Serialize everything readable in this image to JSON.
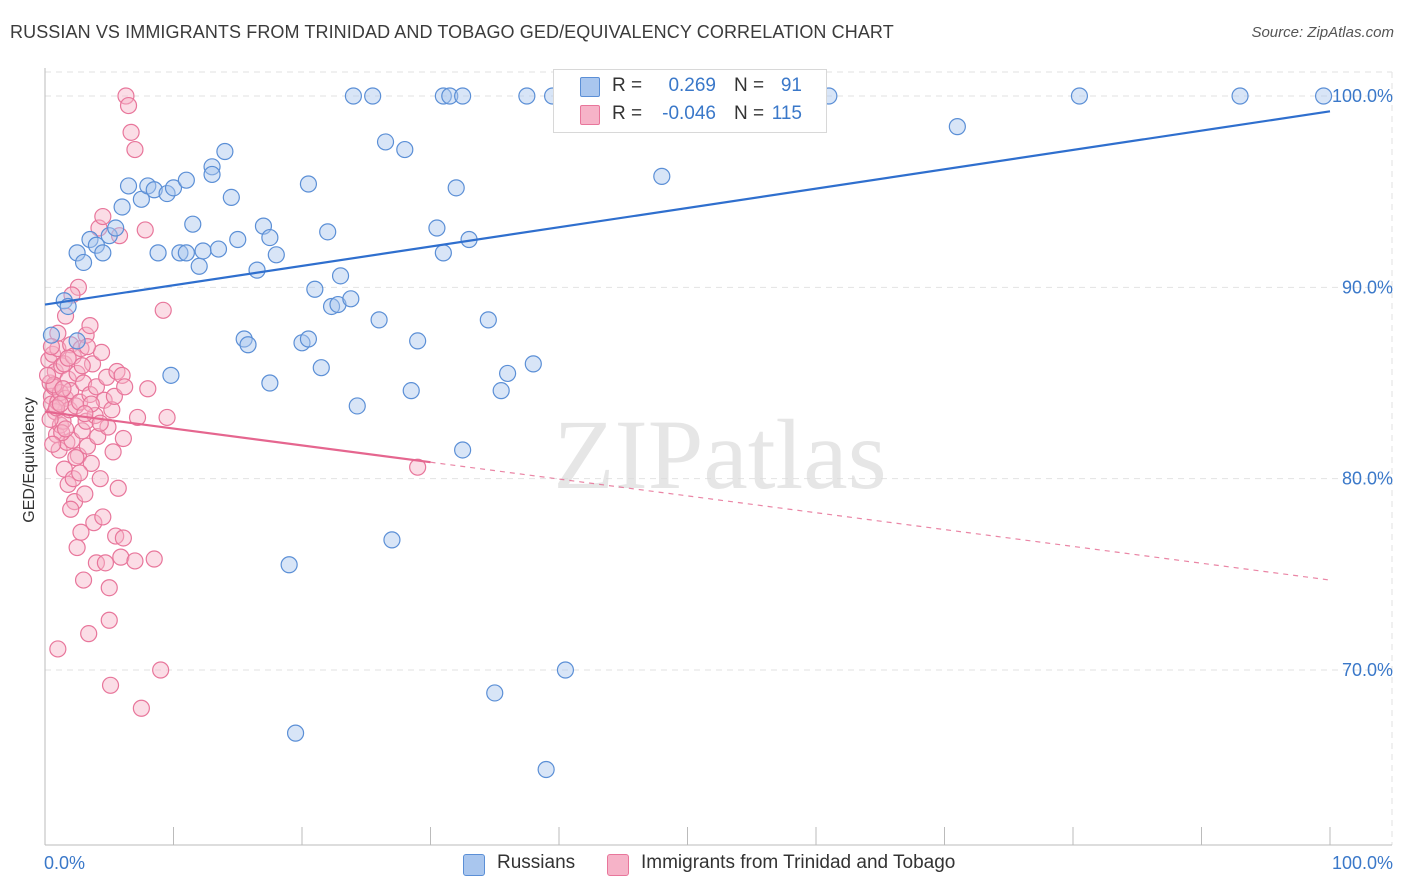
{
  "title": "RUSSIAN VS IMMIGRANTS FROM TRINIDAD AND TOBAGO GED/EQUIVALENCY CORRELATION CHART",
  "source": "Source: ZipAtlas.com",
  "watermark": "ZIPatlas",
  "colors": {
    "blue_fill": "#a9c6ee",
    "blue_stroke": "#5b8fd6",
    "blue_line": "#2f6fce",
    "pink_fill": "#f6b3c8",
    "pink_stroke": "#e8769b",
    "pink_line": "#e5668f",
    "axis_label": "#3a78c9",
    "grid": "#e2e2e2"
  },
  "legend": {
    "rows": [
      {
        "r_label": "R =",
        "r_value": "0.269",
        "n_label": "N =",
        "n_value": "91",
        "color": "#a9c6ee"
      },
      {
        "r_label": "R =",
        "r_value": "-0.046",
        "n_label": "N =",
        "n_value": "115",
        "color": "#f6b3c8"
      }
    ]
  },
  "bottom_legend": [
    "Russians",
    "Immigrants from Trinidad and Tobago"
  ],
  "chart_data": {
    "type": "scatter",
    "title": "RUSSIAN VS IMMIGRANTS FROM TRINIDAD AND TOBAGO GED/EQUIVALENCY CORRELATION CHART",
    "xlabel": "",
    "ylabel": "GED/Equivalency",
    "xlim": [
      0,
      100
    ],
    "ylim": [
      60.5,
      101.5
    ],
    "x_tick_labels": [
      "0.0%",
      "100.0%"
    ],
    "y_ticks": [
      70,
      80,
      90,
      100
    ],
    "y_tick_labels": [
      "70.0%",
      "80.0%",
      "90.0%",
      "100.0%"
    ],
    "grid": true,
    "series": [
      {
        "name": "Russians",
        "trend": {
          "x": [
            0,
            100
          ],
          "y": [
            89.1,
            99.2
          ],
          "dashed_from": null
        },
        "points": [
          [
            0.5,
            87.5
          ],
          [
            1.5,
            89.3
          ],
          [
            1.8,
            89.0
          ],
          [
            2.5,
            87.2
          ],
          [
            2.5,
            91.8
          ],
          [
            3.0,
            91.3
          ],
          [
            3.5,
            92.5
          ],
          [
            4.0,
            92.2
          ],
          [
            4.5,
            91.8
          ],
          [
            5.0,
            92.7
          ],
          [
            5.5,
            93.1
          ],
          [
            6.0,
            94.2
          ],
          [
            6.5,
            95.3
          ],
          [
            7.5,
            94.6
          ],
          [
            8.0,
            95.3
          ],
          [
            8.5,
            95.1
          ],
          [
            8.8,
            91.8
          ],
          [
            9.5,
            94.9
          ],
          [
            10.5,
            91.8
          ],
          [
            10.0,
            95.2
          ],
          [
            9.8,
            85.4
          ],
          [
            11.0,
            95.6
          ],
          [
            11.0,
            91.8
          ],
          [
            11.5,
            93.3
          ],
          [
            12.0,
            91.1
          ],
          [
            12.3,
            91.9
          ],
          [
            13.0,
            96.3
          ],
          [
            13.0,
            95.9
          ],
          [
            13.5,
            92.0
          ],
          [
            14.0,
            97.1
          ],
          [
            14.5,
            94.7
          ],
          [
            15.0,
            92.5
          ],
          [
            15.5,
            87.3
          ],
          [
            15.8,
            87.0
          ],
          [
            16.5,
            90.9
          ],
          [
            17.0,
            93.2
          ],
          [
            17.5,
            92.6
          ],
          [
            17.5,
            85.0
          ],
          [
            18.0,
            91.7
          ],
          [
            19.0,
            75.5
          ],
          [
            19.5,
            66.7
          ],
          [
            20.0,
            87.1
          ],
          [
            20.5,
            87.3
          ],
          [
            20.5,
            95.4
          ],
          [
            21.0,
            89.9
          ],
          [
            21.5,
            85.8
          ],
          [
            22.0,
            92.9
          ],
          [
            22.3,
            89.0
          ],
          [
            22.8,
            89.1
          ],
          [
            23.0,
            90.6
          ],
          [
            24.0,
            100.0
          ],
          [
            23.8,
            89.4
          ],
          [
            24.3,
            83.8
          ],
          [
            25.5,
            100.0
          ],
          [
            26.0,
            88.3
          ],
          [
            26.5,
            97.6
          ],
          [
            27.0,
            76.8
          ],
          [
            28.0,
            97.2
          ],
          [
            28.5,
            84.6
          ],
          [
            29.0,
            87.2
          ],
          [
            30.5,
            93.1
          ],
          [
            31.0,
            91.8
          ],
          [
            31.0,
            100.0
          ],
          [
            31.5,
            100.0
          ],
          [
            32.0,
            95.2
          ],
          [
            32.5,
            81.5
          ],
          [
            32.5,
            100.0
          ],
          [
            33.0,
            92.5
          ],
          [
            34.5,
            88.3
          ],
          [
            35.5,
            84.6
          ],
          [
            37.5,
            100.0
          ],
          [
            38.0,
            86.0
          ],
          [
            39.0,
            64.8
          ],
          [
            40.5,
            70.0
          ],
          [
            39.5,
            100.0
          ],
          [
            41.0,
            100.0
          ],
          [
            44.5,
            100.0
          ],
          [
            47.0,
            100.0
          ],
          [
            48.0,
            95.8
          ],
          [
            52.0,
            100.0
          ],
          [
            55.5,
            100.0
          ],
          [
            58.0,
            100.0
          ],
          [
            61.0,
            100.0
          ],
          [
            71.0,
            98.4
          ],
          [
            80.5,
            100.0
          ],
          [
            93.0,
            100.0
          ],
          [
            99.5,
            100.0
          ],
          [
            35.0,
            68.8
          ],
          [
            36.0,
            85.5
          ]
        ]
      },
      {
        "name": "Immigrants from Trinidad and Tobago",
        "trend": {
          "x": [
            0,
            100
          ],
          "y": [
            83.5,
            74.7
          ],
          "dashed_from": 30
        },
        "points": [
          [
            0.3,
            86.2
          ],
          [
            0.4,
            85.0
          ],
          [
            0.5,
            84.3
          ],
          [
            0.5,
            83.9
          ],
          [
            0.6,
            86.5
          ],
          [
            0.7,
            84.8
          ],
          [
            0.8,
            83.5
          ],
          [
            0.8,
            85.6
          ],
          [
            0.9,
            82.3
          ],
          [
            1.0,
            84.0
          ],
          [
            1.0,
            86.8
          ],
          [
            1.1,
            81.5
          ],
          [
            1.2,
            82.8
          ],
          [
            1.2,
            84.5
          ],
          [
            1.3,
            85.9
          ],
          [
            1.4,
            83.0
          ],
          [
            1.5,
            80.5
          ],
          [
            1.5,
            86.0
          ],
          [
            1.6,
            84.2
          ],
          [
            1.6,
            88.5
          ],
          [
            1.7,
            81.9
          ],
          [
            1.8,
            79.7
          ],
          [
            1.8,
            85.2
          ],
          [
            1.9,
            83.6
          ],
          [
            2.0,
            87.0
          ],
          [
            2.0,
            84.6
          ],
          [
            2.1,
            82.0
          ],
          [
            2.2,
            80.0
          ],
          [
            2.2,
            86.4
          ],
          [
            2.3,
            78.8
          ],
          [
            2.4,
            83.8
          ],
          [
            2.5,
            85.5
          ],
          [
            2.5,
            76.4
          ],
          [
            2.6,
            81.2
          ],
          [
            2.6,
            90.0
          ],
          [
            2.7,
            84.0
          ],
          [
            2.8,
            77.2
          ],
          [
            2.8,
            86.8
          ],
          [
            2.9,
            82.5
          ],
          [
            3.0,
            74.7
          ],
          [
            3.0,
            85.0
          ],
          [
            3.1,
            79.2
          ],
          [
            3.2,
            83.0
          ],
          [
            3.2,
            87.5
          ],
          [
            3.3,
            81.7
          ],
          [
            3.4,
            71.9
          ],
          [
            3.5,
            84.4
          ],
          [
            3.5,
            88.0
          ],
          [
            3.6,
            80.8
          ],
          [
            3.7,
            86.0
          ],
          [
            3.8,
            77.7
          ],
          [
            3.9,
            83.3
          ],
          [
            4.0,
            75.6
          ],
          [
            4.0,
            84.8
          ],
          [
            4.1,
            82.2
          ],
          [
            4.2,
            93.1
          ],
          [
            4.3,
            80.0
          ],
          [
            4.4,
            86.6
          ],
          [
            4.5,
            78.0
          ],
          [
            4.5,
            93.7
          ],
          [
            4.6,
            84.1
          ],
          [
            4.7,
            75.6
          ],
          [
            4.8,
            85.3
          ],
          [
            4.9,
            82.7
          ],
          [
            5.0,
            74.3
          ],
          [
            5.0,
            72.6
          ],
          [
            5.1,
            69.2
          ],
          [
            5.2,
            83.6
          ],
          [
            5.3,
            81.4
          ],
          [
            5.4,
            84.3
          ],
          [
            5.5,
            77.0
          ],
          [
            5.6,
            85.6
          ],
          [
            5.7,
            79.5
          ],
          [
            5.8,
            92.7
          ],
          [
            5.9,
            75.9
          ],
          [
            6.0,
            85.4
          ],
          [
            6.1,
            82.1
          ],
          [
            6.2,
            84.8
          ],
          [
            6.3,
            100.0
          ],
          [
            6.5,
            99.5
          ],
          [
            6.7,
            98.1
          ],
          [
            7.0,
            97.2
          ],
          [
            7.2,
            83.2
          ],
          [
            7.5,
            68.0
          ],
          [
            7.8,
            93.0
          ],
          [
            8.0,
            84.7
          ],
          [
            8.5,
            75.8
          ],
          [
            9.0,
            70.0
          ],
          [
            9.2,
            88.8
          ],
          [
            9.5,
            83.2
          ],
          [
            1.0,
            71.1
          ],
          [
            1.3,
            82.4
          ],
          [
            2.1,
            89.6
          ],
          [
            2.9,
            85.9
          ],
          [
            3.6,
            83.9
          ],
          [
            4.3,
            82.9
          ],
          [
            0.4,
            83.1
          ],
          [
            0.6,
            81.8
          ],
          [
            0.7,
            84.9
          ],
          [
            1.0,
            87.6
          ],
          [
            1.4,
            84.7
          ],
          [
            1.8,
            86.3
          ],
          [
            2.4,
            81.1
          ],
          [
            3.3,
            86.9
          ],
          [
            0.2,
            85.4
          ],
          [
            0.5,
            86.9
          ],
          [
            0.9,
            83.7
          ],
          [
            1.6,
            82.6
          ],
          [
            2.0,
            78.4
          ],
          [
            2.7,
            80.3
          ],
          [
            3.1,
            83.4
          ],
          [
            29.0,
            80.6
          ],
          [
            6.1,
            76.9
          ],
          [
            7.0,
            75.7
          ],
          [
            1.2,
            83.9
          ]
        ]
      }
    ]
  }
}
